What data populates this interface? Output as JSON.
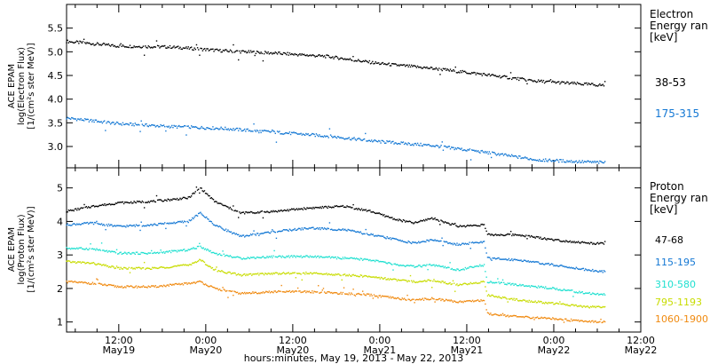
{
  "xaxis": {
    "label": "hours:minutes, May 19, 2013 - May 22, 2013",
    "ticks": [
      {
        "t": 0.5,
        "time": "12:00",
        "date": "May19"
      },
      {
        "t": 1.0,
        "time": "0:00",
        "date": "May20"
      },
      {
        "t": 1.5,
        "time": "12:00",
        "date": "May20"
      },
      {
        "t": 2.0,
        "time": "0:00",
        "date": "May21"
      },
      {
        "t": 2.5,
        "time": "12:00",
        "date": "May21"
      },
      {
        "t": 3.0,
        "time": "0:00",
        "date": "May22"
      },
      {
        "t": 3.5,
        "time": "12:00",
        "date": "May22"
      }
    ],
    "range_days": [
      0.2,
      3.5
    ]
  },
  "chart_data": [
    {
      "type": "scatter",
      "panel": "electron",
      "ylabel": [
        "ACE EPAM",
        "log(Electron Flux)",
        "[1/(cm²s ster MeV)]"
      ],
      "legend_title": [
        "Electron",
        "Energy ran",
        "[keV]"
      ],
      "ylim": [
        2.55,
        6.0
      ],
      "yticks": [
        3.0,
        3.5,
        4.0,
        4.5,
        5.0,
        5.5
      ],
      "series": [
        {
          "name": "38-53",
          "color": "#000000",
          "points": [
            [
              0.2,
              5.22
            ],
            [
              0.5,
              5.12
            ],
            [
              0.8,
              5.1
            ],
            [
              1.1,
              5.02
            ],
            [
              1.4,
              4.97
            ],
            [
              1.7,
              4.9
            ],
            [
              2.0,
              4.75
            ],
            [
              2.3,
              4.65
            ],
            [
              2.6,
              4.52
            ],
            [
              2.9,
              4.38
            ],
            [
              3.2,
              4.31
            ],
            [
              3.3,
              4.29
            ]
          ]
        },
        {
          "name": "175-315",
          "color": "#1478d4",
          "points": [
            [
              0.2,
              3.6
            ],
            [
              0.5,
              3.48
            ],
            [
              0.8,
              3.42
            ],
            [
              1.1,
              3.38
            ],
            [
              1.4,
              3.3
            ],
            [
              1.7,
              3.22
            ],
            [
              2.0,
              3.1
            ],
            [
              2.3,
              3.02
            ],
            [
              2.6,
              2.88
            ],
            [
              2.9,
              2.72
            ],
            [
              3.2,
              2.67
            ],
            [
              3.3,
              2.66
            ]
          ]
        }
      ]
    },
    {
      "type": "scatter",
      "panel": "proton",
      "ylabel": [
        "ACE EPAM",
        "log(Proton Flux)",
        "[1/(cm²s ster MeV)]"
      ],
      "legend_title": [
        "Proton",
        "Energy ran",
        "[keV]"
      ],
      "ylim": [
        0.7,
        5.6
      ],
      "yticks": [
        1,
        2,
        3,
        4,
        5
      ],
      "series": [
        {
          "name": "47-68",
          "color": "#000000",
          "points": [
            [
              0.2,
              4.3
            ],
            [
              0.35,
              4.45
            ],
            [
              0.5,
              4.55
            ],
            [
              0.7,
              4.6
            ],
            [
              0.9,
              4.7
            ],
            [
              0.97,
              5.0
            ],
            [
              1.05,
              4.6
            ],
            [
              1.2,
              4.25
            ],
            [
              1.4,
              4.3
            ],
            [
              1.6,
              4.4
            ],
            [
              1.8,
              4.45
            ],
            [
              1.95,
              4.3
            ],
            [
              2.1,
              4.05
            ],
            [
              2.2,
              3.95
            ],
            [
              2.3,
              4.1
            ],
            [
              2.45,
              3.85
            ],
            [
              2.6,
              3.9
            ],
            [
              2.62,
              3.6
            ],
            [
              2.8,
              3.6
            ],
            [
              3.0,
              3.45
            ],
            [
              3.2,
              3.35
            ],
            [
              3.3,
              3.33
            ]
          ]
        },
        {
          "name": "115-195",
          "color": "#1478d4",
          "points": [
            [
              0.2,
              3.9
            ],
            [
              0.35,
              3.95
            ],
            [
              0.5,
              3.85
            ],
            [
              0.7,
              3.9
            ],
            [
              0.9,
              4.0
            ],
            [
              0.97,
              4.25
            ],
            [
              1.05,
              3.9
            ],
            [
              1.2,
              3.55
            ],
            [
              1.4,
              3.7
            ],
            [
              1.6,
              3.8
            ],
            [
              1.8,
              3.75
            ],
            [
              1.95,
              3.6
            ],
            [
              2.1,
              3.45
            ],
            [
              2.2,
              3.35
            ],
            [
              2.3,
              3.45
            ],
            [
              2.45,
              3.3
            ],
            [
              2.6,
              3.4
            ],
            [
              2.62,
              2.9
            ],
            [
              2.8,
              2.85
            ],
            [
              3.0,
              2.7
            ],
            [
              3.2,
              2.55
            ],
            [
              3.3,
              2.5
            ]
          ]
        },
        {
          "name": "310-580",
          "color": "#20e0d0",
          "points": [
            [
              0.2,
              3.2
            ],
            [
              0.35,
              3.18
            ],
            [
              0.5,
              3.05
            ],
            [
              0.7,
              3.05
            ],
            [
              0.9,
              3.15
            ],
            [
              0.97,
              3.25
            ],
            [
              1.05,
              3.05
            ],
            [
              1.2,
              2.9
            ],
            [
              1.4,
              2.95
            ],
            [
              1.6,
              2.95
            ],
            [
              1.8,
              2.9
            ],
            [
              1.95,
              2.85
            ],
            [
              2.1,
              2.7
            ],
            [
              2.2,
              2.65
            ],
            [
              2.3,
              2.7
            ],
            [
              2.45,
              2.55
            ],
            [
              2.6,
              2.7
            ],
            [
              2.62,
              2.2
            ],
            [
              2.8,
              2.1
            ],
            [
              3.0,
              2.0
            ],
            [
              3.2,
              1.85
            ],
            [
              3.3,
              1.82
            ]
          ]
        },
        {
          "name": "795-1193",
          "color": "#c8dc00",
          "points": [
            [
              0.2,
              2.8
            ],
            [
              0.35,
              2.75
            ],
            [
              0.5,
              2.6
            ],
            [
              0.7,
              2.6
            ],
            [
              0.9,
              2.7
            ],
            [
              0.97,
              2.85
            ],
            [
              1.05,
              2.55
            ],
            [
              1.2,
              2.4
            ],
            [
              1.4,
              2.45
            ],
            [
              1.6,
              2.45
            ],
            [
              1.8,
              2.4
            ],
            [
              1.95,
              2.35
            ],
            [
              2.1,
              2.25
            ],
            [
              2.2,
              2.2
            ],
            [
              2.3,
              2.25
            ],
            [
              2.45,
              2.1
            ],
            [
              2.6,
              2.2
            ],
            [
              2.62,
              1.8
            ],
            [
              2.8,
              1.65
            ],
            [
              3.0,
              1.55
            ],
            [
              3.2,
              1.45
            ],
            [
              3.3,
              1.45
            ]
          ]
        },
        {
          "name": "1060-1900",
          "color": "#f08a10",
          "points": [
            [
              0.2,
              2.2
            ],
            [
              0.35,
              2.15
            ],
            [
              0.5,
              2.05
            ],
            [
              0.7,
              2.05
            ],
            [
              0.9,
              2.15
            ],
            [
              0.97,
              2.2
            ],
            [
              1.05,
              2.0
            ],
            [
              1.2,
              1.85
            ],
            [
              1.4,
              1.9
            ],
            [
              1.6,
              1.9
            ],
            [
              1.8,
              1.85
            ],
            [
              1.95,
              1.8
            ],
            [
              2.1,
              1.7
            ],
            [
              2.2,
              1.65
            ],
            [
              2.3,
              1.7
            ],
            [
              2.45,
              1.6
            ],
            [
              2.6,
              1.65
            ],
            [
              2.62,
              1.25
            ],
            [
              2.8,
              1.15
            ],
            [
              3.0,
              1.1
            ],
            [
              3.2,
              1.02
            ],
            [
              3.3,
              1.0
            ]
          ]
        }
      ]
    }
  ]
}
